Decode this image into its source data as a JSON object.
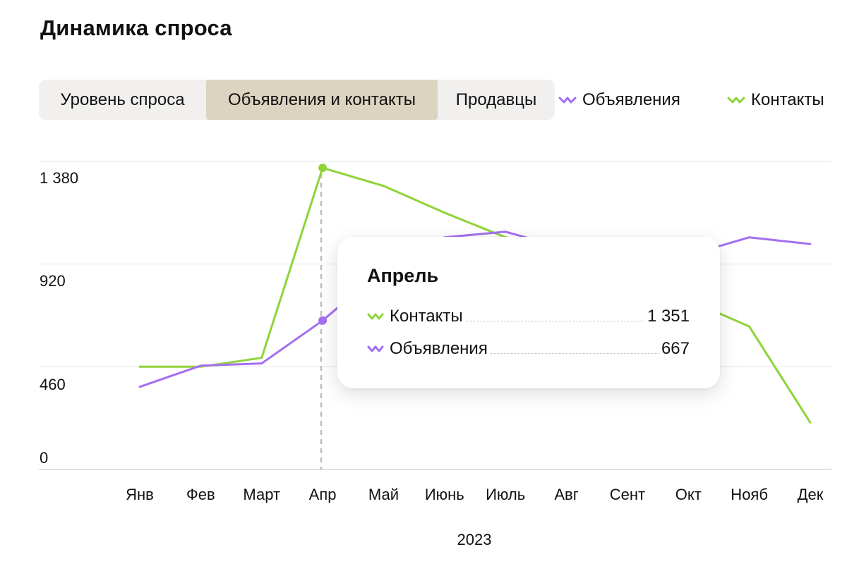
{
  "title": "Динамика спроса",
  "tabs": [
    {
      "label": "Уровень спроса",
      "active": false
    },
    {
      "label": "Объявления и контакты",
      "active": true
    },
    {
      "label": "Продавцы",
      "active": false
    }
  ],
  "legend": {
    "listings": "Объявления",
    "contacts": "Контакты"
  },
  "tooltip": {
    "title": "Апрель",
    "rows": [
      {
        "label": "Контакты",
        "value": "1 351"
      },
      {
        "label": "Объявления",
        "value": "667"
      }
    ]
  },
  "colors": {
    "listings": "#a46ff0",
    "contacts": "#8fd33a",
    "active_tab": "#dcd3c0",
    "tabs_bg": "#f1f0ee"
  },
  "chart_data": {
    "type": "line",
    "x": [
      "Янв",
      "Фев",
      "Март",
      "Апр",
      "Май",
      "Июнь",
      "Июль",
      "Авг",
      "Сент",
      "Окт",
      "Нояб",
      "Дек"
    ],
    "xlabel": "2023",
    "ylabel": "",
    "y_ticks": [
      "1 380",
      "920",
      "460",
      "0"
    ],
    "y_tick_values": [
      1380,
      920,
      460,
      0
    ],
    "ylim": [
      0,
      1380
    ],
    "grid": true,
    "legend_position": "top-right",
    "highlighted_index": 3,
    "series": [
      {
        "name": "Контакты",
        "key": "contacts",
        "values": [
          460,
          460,
          500,
          1351,
          1270,
          1150,
          1040,
          990,
          960,
          760,
          640,
          210
        ]
      },
      {
        "name": "Объявления",
        "key": "listings",
        "values": [
          370,
          465,
          475,
          667,
          900,
          1040,
          1065,
          990,
          1000,
          960,
          1040,
          1010
        ]
      }
    ]
  }
}
